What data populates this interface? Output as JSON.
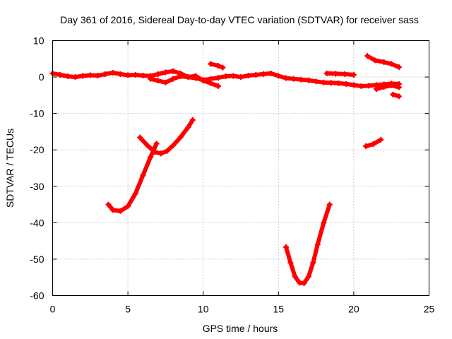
{
  "chart_data": {
    "type": "line",
    "title": "Day 361 of 2016, Sidereal Day-to-day VTEC variation (SDTVAR) for receiver sass",
    "xlabel": "GPS time / hours",
    "ylabel": "SDTVAR / TECUs",
    "xlim": [
      0,
      25
    ],
    "ylim": [
      -60,
      10
    ],
    "xticks": [
      0,
      5,
      10,
      15,
      20,
      25
    ],
    "yticks": [
      10,
      0,
      -10,
      -20,
      -30,
      -40,
      -50,
      -60
    ],
    "xtick_labels": [
      "0",
      "5",
      "10",
      "15",
      "20",
      "25"
    ],
    "ytick_labels": [
      "10",
      "0",
      "-10",
      "-20",
      "-30",
      "-40",
      "-50",
      "-60"
    ],
    "grid": true,
    "legend": "none",
    "color": "#ff0000",
    "series": [
      {
        "name": "track-near-zero-a",
        "x": [
          0.0,
          0.5,
          1.0,
          1.5,
          2.0,
          2.5,
          3.0,
          3.5,
          4.0,
          4.5,
          5.0,
          5.5,
          6.0,
          6.5,
          7.0,
          7.5,
          8.0,
          8.5,
          9.0,
          9.5,
          10.0,
          10.5,
          11.0
        ],
        "y": [
          1.0,
          0.6,
          0.2,
          0.0,
          0.3,
          0.5,
          0.4,
          0.8,
          1.2,
          0.8,
          0.5,
          0.6,
          0.4,
          0.3,
          0.8,
          1.3,
          1.6,
          1.0,
          0.0,
          0.3,
          -1.0,
          -1.7,
          -2.5
        ]
      },
      {
        "name": "track-near-zero-b",
        "x": [
          6.5,
          7.0,
          7.5,
          8.0,
          8.5,
          9.0,
          9.5,
          10.0,
          10.5,
          11.0,
          11.5,
          12.0,
          12.5,
          13.0,
          13.5,
          14.0,
          14.5,
          15.0,
          15.5,
          16.0,
          16.5,
          17.0,
          17.5,
          18.0,
          18.5,
          19.0,
          19.5,
          20.0,
          20.5,
          21.0,
          21.5,
          22.0,
          22.5,
          23.0
        ],
        "y": [
          -0.5,
          -1.0,
          -1.5,
          -0.5,
          0.2,
          0.0,
          -0.3,
          -0.8,
          -0.5,
          -0.2,
          0.2,
          0.3,
          0.0,
          0.4,
          0.6,
          0.8,
          1.0,
          0.3,
          -0.3,
          -0.5,
          -0.7,
          -0.9,
          -1.2,
          -1.5,
          -1.6,
          -1.7,
          -1.9,
          -2.2,
          -2.5,
          -2.4,
          -2.2,
          -2.0,
          -1.8,
          -1.9
        ]
      },
      {
        "name": "track-near-zero-c",
        "x": [
          18.2,
          18.8,
          19.4,
          20.0
        ],
        "y": [
          1.0,
          0.9,
          0.8,
          0.6
        ]
      },
      {
        "name": "track-short-a",
        "x": [
          10.5,
          11.0,
          11.3
        ],
        "y": [
          3.6,
          3.1,
          2.6
        ]
      },
      {
        "name": "track-short-b",
        "x": [
          20.9,
          21.4,
          22.0,
          22.5,
          23.0
        ],
        "y": [
          5.8,
          4.6,
          4.1,
          3.6,
          2.7
        ]
      },
      {
        "name": "track-short-c",
        "x": [
          21.5,
          22.0,
          22.5,
          23.0
        ],
        "y": [
          -3.3,
          -2.7,
          -2.3,
          -2.8
        ]
      },
      {
        "name": "track-short-d",
        "x": [
          22.6,
          23.0
        ],
        "y": [
          -4.8,
          -5.3
        ]
      },
      {
        "name": "track-short-e",
        "x": [
          20.8,
          21.3,
          21.8
        ],
        "y": [
          -19.0,
          -18.4,
          -17.2
        ]
      },
      {
        "name": "track-curve-a",
        "x": [
          3.7,
          4.0,
          4.5,
          5.0,
          5.5,
          6.0,
          6.5,
          6.9
        ],
        "y": [
          -35.0,
          -36.5,
          -36.8,
          -35.5,
          -32.0,
          -27.0,
          -22.0,
          -18.3
        ]
      },
      {
        "name": "track-curve-b",
        "x": [
          5.8,
          6.3,
          6.8,
          7.2,
          7.6,
          8.0,
          8.5,
          9.0,
          9.3
        ],
        "y": [
          -16.6,
          -18.8,
          -20.6,
          -21.0,
          -20.3,
          -18.8,
          -16.5,
          -13.8,
          -11.8
        ]
      },
      {
        "name": "track-curve-c",
        "x": [
          15.5,
          15.8,
          16.1,
          16.4,
          16.7,
          17.0,
          17.3,
          17.6,
          18.0,
          18.4
        ],
        "y": [
          -46.7,
          -51.0,
          -54.8,
          -56.5,
          -56.6,
          -54.8,
          -51.0,
          -46.0,
          -40.0,
          -35.0
        ]
      }
    ]
  }
}
